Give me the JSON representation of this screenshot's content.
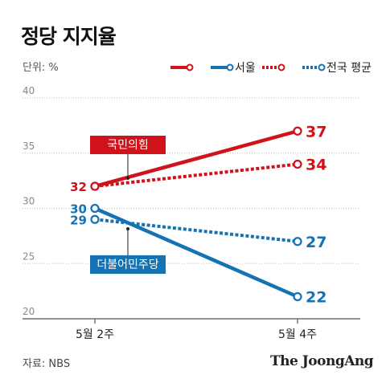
{
  "title": "정당 지지율",
  "unit_label": "단위: %",
  "source": "자료: NBS",
  "logo": "The JoongAng",
  "legend": [
    {
      "label": "서울",
      "style": "solid"
    },
    {
      "label": "전국 평균",
      "style": "dotted"
    }
  ],
  "annotations": [
    {
      "text": "국민의힘",
      "color": "#d0121b"
    },
    {
      "text": "더불어민주당",
      "color": "#1673b3"
    }
  ],
  "colors": {
    "red": "#d0121b",
    "blue": "#1673b3"
  },
  "chart_data": {
    "type": "line",
    "x": [
      "5월 2주",
      "5월 4주"
    ],
    "ylim": [
      20,
      40
    ],
    "yticks": [
      20,
      25,
      30,
      35,
      40
    ],
    "grid": true,
    "legend_position": "top-right",
    "series": [
      {
        "party": "국민의힘",
        "scope": "서울",
        "values": [
          32,
          37
        ],
        "color": "#d0121b",
        "style": "solid"
      },
      {
        "party": "국민의힘",
        "scope": "전국 평균",
        "values": [
          32,
          34
        ],
        "color": "#d0121b",
        "style": "dotted"
      },
      {
        "party": "더불어민주당",
        "scope": "서울",
        "values": [
          30,
          22
        ],
        "color": "#1673b3",
        "style": "solid"
      },
      {
        "party": "더불어민주당",
        "scope": "전국 평균",
        "values": [
          29,
          27
        ],
        "color": "#1673b3",
        "style": "dotted"
      }
    ],
    "labels": [
      {
        "text": "32",
        "series": 0,
        "point": 0
      },
      {
        "text": "37",
        "series": 0,
        "point": 1
      },
      {
        "text": "34",
        "series": 1,
        "point": 1
      },
      {
        "text": "30",
        "series": 2,
        "point": 0
      },
      {
        "text": "22",
        "series": 2,
        "point": 1
      },
      {
        "text": "29",
        "series": 3,
        "point": 0
      },
      {
        "text": "27",
        "series": 3,
        "point": 1
      }
    ]
  }
}
